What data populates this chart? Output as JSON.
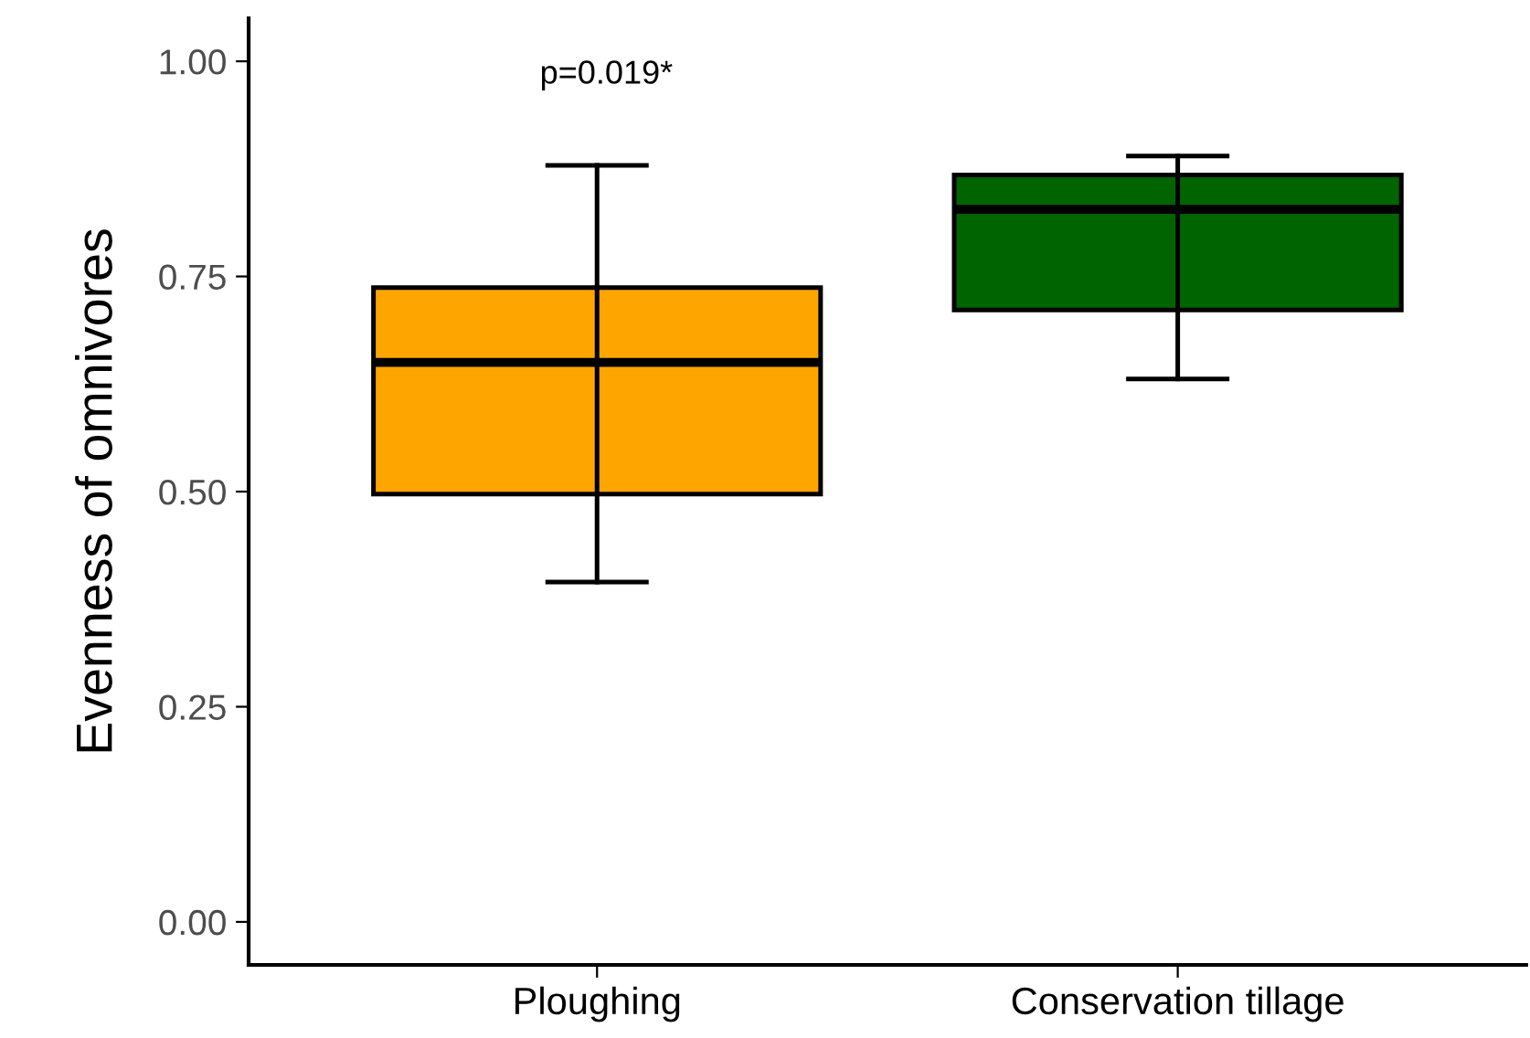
{
  "chart_data": {
    "type": "box",
    "ylabel": "Evenness of omnivores",
    "categories": [
      "Ploughing",
      "Conservation tillage"
    ],
    "boxes": [
      {
        "low": 0.395,
        "q1": 0.497,
        "median": 0.65,
        "q3": 0.737,
        "high": 0.879
      },
      {
        "low": 0.631,
        "q1": 0.711,
        "median": 0.828,
        "q3": 0.868,
        "high": 0.89
      }
    ],
    "colors": [
      "#ffa500",
      "#006400"
    ],
    "ylim": [
      -0.05,
      1.05
    ],
    "yticks": [
      {
        "value": 0,
        "label": "0.00"
      },
      {
        "value": 0.25,
        "label": "0.25"
      },
      {
        "value": 0.5,
        "label": "0.50"
      },
      {
        "value": 0.75,
        "label": "0.75"
      },
      {
        "value": 1,
        "label": "1.00"
      }
    ],
    "annotations": [
      "p=0.019*"
    ],
    "grid": false
  }
}
